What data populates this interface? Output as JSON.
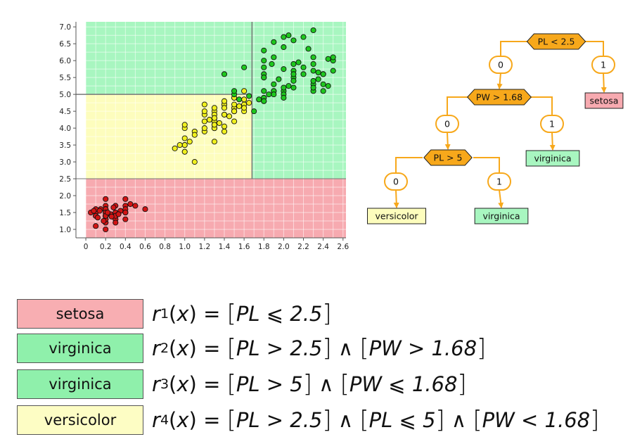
{
  "chart_data": {
    "type": "scatter",
    "title": "",
    "xlabel": "",
    "ylabel": "",
    "xlim": [
      -0.1,
      2.63
    ],
    "ylim": [
      0.75,
      7.15
    ],
    "xticks": [
      "0",
      "0.2",
      "0.4",
      "0.6",
      "0.8",
      "1.0",
      "1.2",
      "1.4",
      "1.6",
      "1.8",
      "2.0",
      "2.2",
      "2.4",
      "2.6"
    ],
    "yticks": [
      "1.0",
      "1.5",
      "2.0",
      "2.5",
      "3.0",
      "3.5",
      "4.0",
      "4.5",
      "5.0",
      "5.5",
      "6.0",
      "6.5",
      "7.0"
    ],
    "grid": true,
    "regions": [
      {
        "class": "setosa",
        "x": [
          0,
          2.63
        ],
        "y": [
          0.75,
          2.5
        ],
        "color": "#f7aab0"
      },
      {
        "class": "versicolor",
        "x": [
          0,
          1.68
        ],
        "y": [
          2.5,
          5.0
        ],
        "color": "#fdfdbd"
      },
      {
        "class": "virginica",
        "x": [
          1.68,
          2.63
        ],
        "y": [
          2.5,
          5.0
        ],
        "color": "#a8f6c0"
      },
      {
        "class": "virginica",
        "x": [
          0,
          2.63
        ],
        "y": [
          5.0,
          7.15
        ],
        "color": "#a8f6c0"
      }
    ],
    "series": [
      {
        "class": "setosa",
        "color": "#d21414",
        "points": [
          [
            0.2,
            1.4
          ],
          [
            0.2,
            1.4
          ],
          [
            0.2,
            1.3
          ],
          [
            0.2,
            1.5
          ],
          [
            0.2,
            1.4
          ],
          [
            0.4,
            1.7
          ],
          [
            0.3,
            1.4
          ],
          [
            0.2,
            1.5
          ],
          [
            0.2,
            1.4
          ],
          [
            0.1,
            1.5
          ],
          [
            0.2,
            1.5
          ],
          [
            0.2,
            1.6
          ],
          [
            0.1,
            1.4
          ],
          [
            0.1,
            1.1
          ],
          [
            0.2,
            1.2
          ],
          [
            0.4,
            1.5
          ],
          [
            0.4,
            1.3
          ],
          [
            0.3,
            1.4
          ],
          [
            0.3,
            1.7
          ],
          [
            0.3,
            1.5
          ],
          [
            0.2,
            1.7
          ],
          [
            0.4,
            1.5
          ],
          [
            0.2,
            1.0
          ],
          [
            0.5,
            1.7
          ],
          [
            0.2,
            1.9
          ],
          [
            0.2,
            1.6
          ],
          [
            0.4,
            1.6
          ],
          [
            0.2,
            1.5
          ],
          [
            0.2,
            1.4
          ],
          [
            0.2,
            1.6
          ],
          [
            0.2,
            1.6
          ],
          [
            0.4,
            1.5
          ],
          [
            0.1,
            1.5
          ],
          [
            0.2,
            1.4
          ],
          [
            0.2,
            1.5
          ],
          [
            0.2,
            1.2
          ],
          [
            0.2,
            1.3
          ],
          [
            0.1,
            1.4
          ],
          [
            0.2,
            1.3
          ],
          [
            0.2,
            1.5
          ],
          [
            0.3,
            1.3
          ],
          [
            0.3,
            1.3
          ],
          [
            0.2,
            1.3
          ],
          [
            0.6,
            1.6
          ],
          [
            0.4,
            1.9
          ],
          [
            0.3,
            1.4
          ],
          [
            0.2,
            1.6
          ],
          [
            0.2,
            1.4
          ],
          [
            0.2,
            1.5
          ],
          [
            0.2,
            1.4
          ],
          [
            0.1,
            1.6
          ],
          [
            0.05,
            1.5
          ],
          [
            0.15,
            1.6
          ],
          [
            0.25,
            1.45
          ],
          [
            0.35,
            1.55
          ],
          [
            0.12,
            1.35
          ],
          [
            0.28,
            1.65
          ],
          [
            0.18,
            1.25
          ],
          [
            0.45,
            1.75
          ],
          [
            0.3,
            1.2
          ],
          [
            0.08,
            1.55
          ],
          [
            0.22,
            1.5
          ],
          [
            0.33,
            1.45
          ],
          [
            0.14,
            1.55
          ],
          [
            0.26,
            1.38
          ]
        ]
      },
      {
        "class": "versicolor",
        "color": "#f0f01e",
        "points": [
          [
            1.4,
            4.7
          ],
          [
            1.5,
            4.5
          ],
          [
            1.5,
            4.9
          ],
          [
            1.3,
            4.0
          ],
          [
            1.5,
            4.6
          ],
          [
            1.3,
            4.5
          ],
          [
            1.6,
            4.7
          ],
          [
            1.0,
            3.3
          ],
          [
            1.3,
            4.6
          ],
          [
            1.4,
            3.9
          ],
          [
            1.0,
            3.5
          ],
          [
            1.5,
            4.2
          ],
          [
            1.0,
            4.0
          ],
          [
            1.4,
            4.7
          ],
          [
            1.3,
            3.6
          ],
          [
            1.4,
            4.4
          ],
          [
            1.5,
            4.5
          ],
          [
            1.0,
            4.1
          ],
          [
            1.5,
            4.5
          ],
          [
            1.1,
            3.9
          ],
          [
            1.3,
            4.0
          ],
          [
            1.5,
            4.9
          ],
          [
            1.2,
            4.7
          ],
          [
            1.3,
            4.3
          ],
          [
            1.4,
            4.4
          ],
          [
            1.4,
            4.8
          ],
          [
            1.5,
            4.5
          ],
          [
            1.0,
            3.5
          ],
          [
            1.1,
            3.8
          ],
          [
            1.0,
            3.7
          ],
          [
            1.2,
            3.9
          ],
          [
            1.6,
            5.1
          ],
          [
            1.5,
            4.5
          ],
          [
            1.6,
            4.5
          ],
          [
            1.5,
            4.7
          ],
          [
            1.3,
            4.4
          ],
          [
            1.3,
            4.1
          ],
          [
            1.3,
            4.0
          ],
          [
            1.2,
            4.4
          ],
          [
            1.4,
            4.6
          ],
          [
            1.2,
            4.0
          ],
          [
            1.0,
            3.3
          ],
          [
            1.3,
            4.2
          ],
          [
            1.2,
            4.2
          ],
          [
            1.3,
            4.2
          ],
          [
            1.3,
            4.3
          ],
          [
            1.1,
            3.0
          ],
          [
            1.3,
            4.1
          ],
          [
            1.6,
            4.6
          ],
          [
            0.9,
            3.4
          ],
          [
            0.95,
            3.5
          ],
          [
            1.05,
            3.6
          ],
          [
            1.25,
            4.25
          ],
          [
            1.35,
            4.15
          ],
          [
            1.45,
            4.35
          ],
          [
            1.55,
            4.65
          ],
          [
            1.65,
            4.75
          ],
          [
            1.2,
            4.5
          ],
          [
            1.4,
            4.05
          ],
          [
            1.6,
            4.85
          ]
        ]
      },
      {
        "class": "virginica",
        "color": "#1ec81e",
        "points": [
          [
            2.5,
            6.0
          ],
          [
            1.9,
            5.1
          ],
          [
            2.1,
            5.9
          ],
          [
            1.8,
            5.6
          ],
          [
            2.2,
            5.8
          ],
          [
            2.1,
            6.6
          ],
          [
            1.7,
            4.5
          ],
          [
            1.8,
            6.3
          ],
          [
            1.8,
            5.8
          ],
          [
            2.5,
            6.1
          ],
          [
            2.0,
            5.1
          ],
          [
            1.9,
            5.3
          ],
          [
            2.1,
            5.5
          ],
          [
            2.0,
            5.0
          ],
          [
            2.4,
            5.1
          ],
          [
            2.3,
            5.3
          ],
          [
            1.8,
            5.5
          ],
          [
            2.2,
            6.7
          ],
          [
            2.3,
            6.9
          ],
          [
            1.5,
            5.0
          ],
          [
            2.3,
            5.7
          ],
          [
            2.0,
            4.9
          ],
          [
            2.0,
            6.7
          ],
          [
            1.8,
            4.9
          ],
          [
            2.1,
            5.7
          ],
          [
            1.8,
            6.0
          ],
          [
            1.8,
            4.8
          ],
          [
            1.8,
            4.9
          ],
          [
            2.1,
            5.6
          ],
          [
            1.6,
            5.8
          ],
          [
            1.9,
            6.1
          ],
          [
            2.0,
            6.4
          ],
          [
            2.2,
            5.6
          ],
          [
            1.5,
            5.1
          ],
          [
            1.4,
            5.6
          ],
          [
            2.3,
            6.1
          ],
          [
            2.4,
            5.6
          ],
          [
            1.8,
            5.5
          ],
          [
            1.8,
            4.8
          ],
          [
            2.1,
            5.4
          ],
          [
            2.4,
            5.6
          ],
          [
            2.3,
            5.1
          ],
          [
            1.9,
            5.1
          ],
          [
            2.3,
            5.9
          ],
          [
            2.5,
            5.7
          ],
          [
            2.3,
            5.2
          ],
          [
            1.9,
            5.0
          ],
          [
            2.0,
            5.2
          ],
          [
            2.3,
            5.4
          ],
          [
            1.8,
            5.1
          ],
          [
            1.75,
            4.85
          ],
          [
            1.85,
            5.0
          ],
          [
            1.95,
            5.45
          ],
          [
            2.05,
            5.25
          ],
          [
            2.15,
            5.95
          ],
          [
            2.25,
            6.35
          ],
          [
            2.35,
            5.45
          ],
          [
            2.45,
            6.05
          ],
          [
            1.65,
            4.95
          ],
          [
            1.9,
            6.55
          ],
          [
            2.1,
            5.2
          ],
          [
            2.4,
            5.3
          ],
          [
            2.05,
            6.75
          ],
          [
            2.0,
            5.75
          ],
          [
            1.55,
            4.85
          ],
          [
            2.35,
            5.65
          ],
          [
            2.45,
            5.25
          ],
          [
            1.88,
            5.9
          ]
        ]
      }
    ]
  },
  "tree": {
    "nodes": [
      {
        "id": "root",
        "kind": "split",
        "label": "PL < 2.5"
      },
      {
        "id": "e_root_0",
        "kind": "edge",
        "label": "0"
      },
      {
        "id": "e_root_1",
        "kind": "edge",
        "label": "1"
      },
      {
        "id": "leaf_setosa",
        "kind": "leaf",
        "label": "setosa",
        "color": "#f7aab0"
      },
      {
        "id": "pw",
        "kind": "split",
        "label": "PW > 1.68"
      },
      {
        "id": "e_pw_0",
        "kind": "edge",
        "label": "0"
      },
      {
        "id": "e_pw_1",
        "kind": "edge",
        "label": "1"
      },
      {
        "id": "leaf_virginica_a",
        "kind": "leaf",
        "label": "virginica",
        "color": "#a8f6c0"
      },
      {
        "id": "pl5",
        "kind": "split",
        "label": "PL > 5"
      },
      {
        "id": "e_pl5_0",
        "kind": "edge",
        "label": "0"
      },
      {
        "id": "e_pl5_1",
        "kind": "edge",
        "label": "1"
      },
      {
        "id": "leaf_versicolor",
        "kind": "leaf",
        "label": "versicolor",
        "color": "#fdfdbd"
      },
      {
        "id": "leaf_virginica_b",
        "kind": "leaf",
        "label": "virginica",
        "color": "#a8f6c0"
      }
    ],
    "split_color": "#f7a81b",
    "edge_color": "#f7a81b"
  },
  "rules": [
    {
      "class": "setosa",
      "color": "#f8aeb2",
      "sub": "1",
      "parts": [
        "PL ⩽ 2.5"
      ]
    },
    {
      "class": "virginica",
      "color": "#8ff0ab",
      "sub": "2",
      "parts": [
        "PL > 2.5",
        "PW > 1.68"
      ]
    },
    {
      "class": "virginica",
      "color": "#8ff0ab",
      "sub": "3",
      "parts": [
        "PL > 5",
        "PW ⩽ 1.68"
      ]
    },
    {
      "class": "versicolor",
      "color": "#fdfdc4",
      "sub": "4",
      "parts": [
        "PL > 2.5",
        "PL ⩽ 5",
        "PW < 1.68"
      ]
    }
  ],
  "rule_prefix": "r",
  "rule_arg": "x",
  "and_symbol": "∧",
  "eq_symbol": "="
}
